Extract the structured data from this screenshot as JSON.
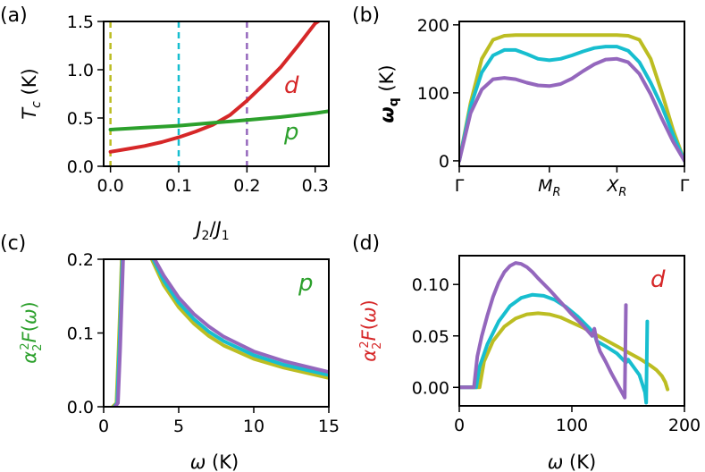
{
  "colors": {
    "c0": "#bcbd22",
    "c1": "#17becf",
    "c2": "#9467bd",
    "d": "#d62728",
    "p": "#2ca02c"
  },
  "chart_data": [
    {
      "panel": "(a)",
      "type": "line",
      "xlabel": "J₂/J₁",
      "ylabel": "T_c (K)",
      "xlim": [
        -0.01,
        0.32
      ],
      "ylim": [
        0,
        1.5
      ],
      "xticks": [
        "0.0",
        "0.1",
        "0.2",
        "0.3"
      ],
      "yticks": [
        "0.0",
        "0.5",
        "1.0",
        "1.5"
      ],
      "series": [
        {
          "name": "d",
          "color": "#d62728",
          "x": [
            0.0,
            0.025,
            0.05,
            0.075,
            0.1,
            0.125,
            0.15,
            0.175,
            0.2,
            0.225,
            0.25,
            0.275,
            0.3,
            0.315
          ],
          "y": [
            0.15,
            0.18,
            0.21,
            0.25,
            0.3,
            0.36,
            0.43,
            0.53,
            0.68,
            0.85,
            1.03,
            1.25,
            1.48,
            1.55
          ]
        },
        {
          "name": "p",
          "color": "#2ca02c",
          "x": [
            0.0,
            0.05,
            0.1,
            0.15,
            0.2,
            0.25,
            0.3,
            0.32
          ],
          "y": [
            0.38,
            0.4,
            0.42,
            0.45,
            0.48,
            0.51,
            0.55,
            0.57
          ]
        }
      ],
      "vlines": [
        {
          "x": 0.0,
          "color": "#bcbd22"
        },
        {
          "x": 0.1,
          "color": "#17becf"
        },
        {
          "x": 0.2,
          "color": "#9467bd"
        }
      ]
    },
    {
      "panel": "(b)",
      "type": "line",
      "ylabel": "ω_q (K)",
      "xlim": [
        0,
        1
      ],
      "ylim": [
        -8,
        205
      ],
      "xticks": [
        "Γ",
        "M_R",
        "X_R",
        "Γ"
      ],
      "xtick_pos": [
        0,
        0.4,
        0.7,
        1.0
      ],
      "yticks": [
        "0",
        "100",
        "200"
      ],
      "series": [
        {
          "color": "#bcbd22",
          "x": [
            0,
            0.05,
            0.1,
            0.15,
            0.2,
            0.25,
            0.3,
            0.4,
            0.5,
            0.6,
            0.7,
            0.75,
            0.8,
            0.85,
            0.9,
            0.95,
            1.0
          ],
          "y": [
            0,
            85,
            150,
            178,
            184,
            185,
            185,
            185,
            185,
            185,
            185,
            184,
            178,
            150,
            100,
            45,
            0
          ]
        },
        {
          "color": "#17becf",
          "x": [
            0,
            0.05,
            0.1,
            0.15,
            0.2,
            0.25,
            0.3,
            0.35,
            0.4,
            0.45,
            0.5,
            0.55,
            0.6,
            0.65,
            0.7,
            0.75,
            0.8,
            0.85,
            0.9,
            0.95,
            1.0
          ],
          "y": [
            0,
            80,
            130,
            155,
            163,
            163,
            157,
            150,
            148,
            150,
            155,
            161,
            166,
            168,
            168,
            162,
            145,
            115,
            80,
            38,
            0
          ]
        },
        {
          "color": "#9467bd",
          "x": [
            0,
            0.05,
            0.1,
            0.15,
            0.2,
            0.25,
            0.3,
            0.35,
            0.4,
            0.45,
            0.5,
            0.55,
            0.6,
            0.65,
            0.7,
            0.75,
            0.8,
            0.85,
            0.9,
            0.95,
            1.0
          ],
          "y": [
            0,
            70,
            105,
            120,
            122,
            120,
            115,
            111,
            110,
            113,
            121,
            132,
            142,
            149,
            150,
            145,
            128,
            98,
            62,
            28,
            0
          ]
        }
      ]
    },
    {
      "panel": "(c)",
      "type": "line",
      "xlabel": "ω (K)",
      "ylabel": "α²₂F(ω)",
      "annotation": "p",
      "xlim": [
        0,
        15
      ],
      "ylim": [
        0,
        0.2
      ],
      "xticks": [
        "0",
        "5",
        "10",
        "15"
      ],
      "yticks": [
        "0.0",
        "0.1",
        "0.2"
      ],
      "series": [
        {
          "color": "#bcbd22",
          "x": [
            0.6,
            0.85,
            1.0,
            1.2,
            1.4,
            2.8,
            3.2,
            4,
            5,
            6,
            7,
            8,
            10,
            12,
            15
          ],
          "y": [
            0,
            0.005,
            0.08,
            0.2,
            0.21,
            0.21,
            0.2,
            0.165,
            0.135,
            0.113,
            0.096,
            0.083,
            0.065,
            0.053,
            0.039
          ]
        },
        {
          "color": "#17becf",
          "x": [
            0.7,
            0.9,
            1.05,
            1.25,
            1.45,
            2.9,
            3.3,
            4,
            5,
            6,
            7,
            8,
            10,
            12,
            15
          ],
          "y": [
            0,
            0.005,
            0.08,
            0.2,
            0.21,
            0.21,
            0.2,
            0.171,
            0.141,
            0.119,
            0.102,
            0.089,
            0.07,
            0.057,
            0.043
          ]
        },
        {
          "color": "#9467bd",
          "x": [
            0.75,
            0.95,
            1.1,
            1.3,
            1.5,
            3.0,
            3.4,
            4,
            5,
            6,
            7,
            8,
            10,
            12,
            15
          ],
          "y": [
            0,
            0.005,
            0.08,
            0.2,
            0.21,
            0.21,
            0.2,
            0.178,
            0.148,
            0.126,
            0.109,
            0.095,
            0.075,
            0.062,
            0.047
          ]
        }
      ]
    },
    {
      "panel": "(d)",
      "type": "line",
      "xlabel": "ω (K)",
      "ylabel": "α²₂F(ω)",
      "annotation": "d",
      "xlim": [
        0,
        200
      ],
      "ylim": [
        -0.018,
        0.128
      ],
      "xticks": [
        "0",
        "100",
        "200"
      ],
      "yticks": [
        "0.00",
        "0.05",
        "0.10"
      ],
      "series": [
        {
          "color": "#bcbd22",
          "x": [
            0,
            18,
            22,
            30,
            40,
            50,
            60,
            70,
            80,
            90,
            100,
            110,
            120,
            130,
            140,
            150,
            160,
            170,
            175,
            180,
            183,
            185
          ],
          "y": [
            0,
            0,
            0.025,
            0.045,
            0.059,
            0.067,
            0.071,
            0.072,
            0.071,
            0.068,
            0.063,
            0.058,
            0.052,
            0.046,
            0.04,
            0.034,
            0.028,
            0.021,
            0.017,
            0.011,
            0.005,
            -0.002
          ]
        },
        {
          "color": "#17becf",
          "x": [
            0,
            15,
            18,
            25,
            35,
            45,
            55,
            65,
            75,
            85,
            95,
            105,
            115,
            120,
            122,
            130,
            140,
            148,
            150,
            160,
            165,
            166,
            167
          ],
          "y": [
            0,
            0,
            0.02,
            0.042,
            0.064,
            0.079,
            0.087,
            0.09,
            0.089,
            0.085,
            0.078,
            0.069,
            0.058,
            0.052,
            0.045,
            0.04,
            0.033,
            0.024,
            0.027,
            0.012,
            -0.005,
            -0.015,
            0.064
          ]
        },
        {
          "color": "#9467bd",
          "x": [
            0,
            13,
            16,
            20,
            25,
            30,
            35,
            40,
            45,
            50,
            55,
            60,
            65,
            70,
            80,
            90,
            100,
            110,
            118,
            120,
            122,
            125,
            130,
            135,
            140,
            145,
            147,
            148
          ],
          "y": [
            0,
            0,
            0.03,
            0.05,
            0.07,
            0.088,
            0.102,
            0.112,
            0.118,
            0.121,
            0.12,
            0.117,
            0.112,
            0.106,
            0.095,
            0.083,
            0.071,
            0.06,
            0.05,
            0.057,
            0.045,
            0.035,
            0.025,
            0.014,
            0.004,
            -0.006,
            -0.01,
            0.08
          ]
        }
      ]
    }
  ]
}
